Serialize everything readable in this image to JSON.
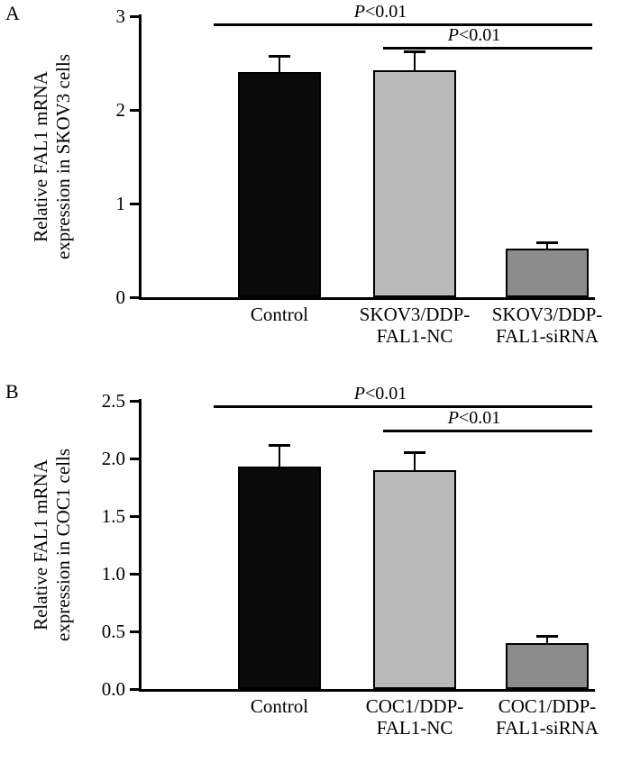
{
  "panels": [
    {
      "letter": "A"
    },
    {
      "letter": "B"
    }
  ],
  "chart_data": [
    {
      "type": "bar",
      "panel": "A",
      "title": "",
      "categories": [
        "Control",
        "SKOV3/DDP-\nFAL1-NC",
        "SKOV3/DDP-\nFAL1-siRNA"
      ],
      "values": [
        2.4,
        2.42,
        0.52
      ],
      "errors": [
        0.17,
        0.2,
        0.06
      ],
      "xlabel": "",
      "ylabel": "Relative FAL1 mRNA\nexpression in SKOV3 cells",
      "ylim": [
        0,
        3
      ],
      "yticks": [
        0,
        1,
        2,
        3
      ],
      "ytick_labels": [
        "0",
        "1",
        "2",
        "3"
      ],
      "bar_colors": [
        "#0a0a0a",
        "#b9b9b9",
        "#8c8c8c"
      ],
      "grid": false,
      "legend": false,
      "significance": [
        {
          "label": "P<0.01",
          "between": [
            "Control",
            "SKOV3/DDP-FAL1-siRNA"
          ]
        },
        {
          "label": "P<0.01",
          "between": [
            "SKOV3/DDP-FAL1-NC",
            "SKOV3/DDP-FAL1-siRNA"
          ]
        }
      ]
    },
    {
      "type": "bar",
      "panel": "B",
      "title": "",
      "categories": [
        "Control",
        "COC1/DDP-\nFAL1-NC",
        "COC1/DDP-\nFAL1-siRNA"
      ],
      "values": [
        1.93,
        1.9,
        0.4
      ],
      "errors": [
        0.18,
        0.15,
        0.05
      ],
      "xlabel": "",
      "ylabel": "Relative FAL1 mRNA\nexpression in COC1 cells",
      "ylim": [
        0,
        2.5
      ],
      "yticks": [
        0,
        0.5,
        1.0,
        1.5,
        2.0,
        2.5
      ],
      "ytick_labels": [
        "0.0",
        "0.5",
        "1.0",
        "1.5",
        "2.0",
        "2.5"
      ],
      "bar_colors": [
        "#0a0a0a",
        "#b9b9b9",
        "#8c8c8c"
      ],
      "grid": false,
      "legend": false,
      "significance": [
        {
          "label": "P<0.01",
          "between": [
            "Control",
            "COC1/DDP-FAL1-siRNA"
          ]
        },
        {
          "label": "P<0.01",
          "between": [
            "COC1/DDP-FAL1-NC",
            "COC1/DDP-FAL1-siRNA"
          ]
        }
      ]
    }
  ]
}
